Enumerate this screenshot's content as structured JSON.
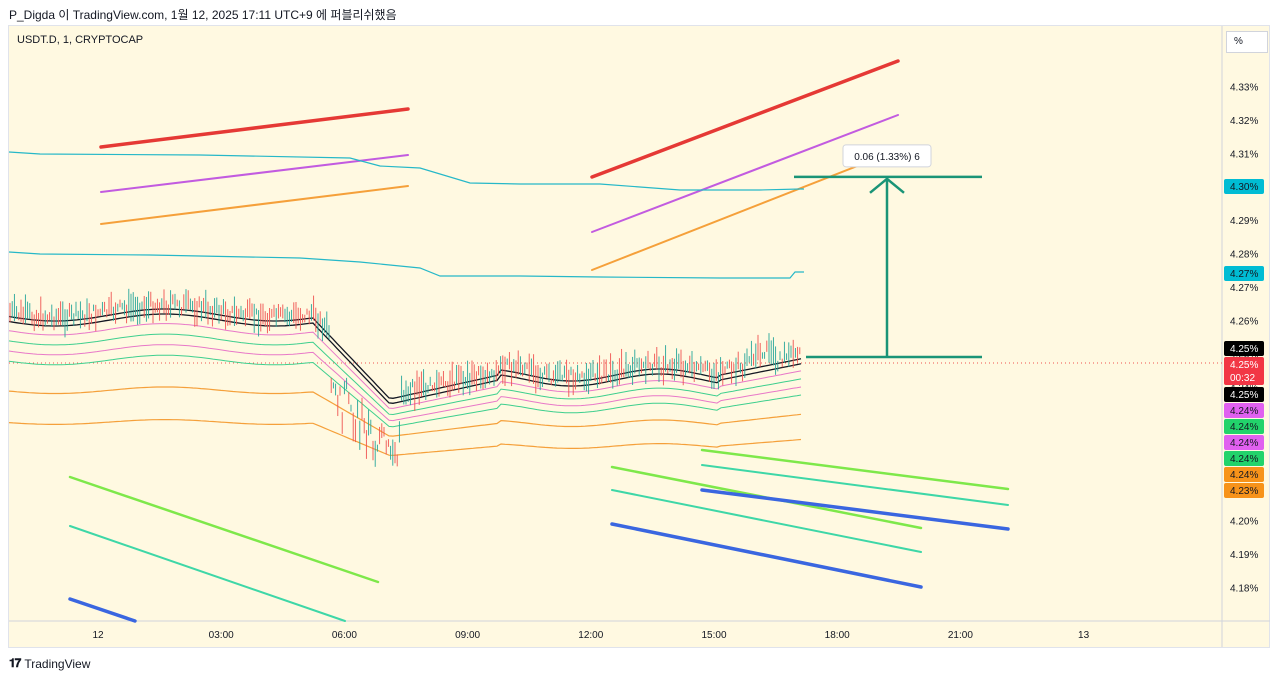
{
  "header": {
    "caption": "P_Digda 이 TradingView.com, 1월 12, 2025 17:11 UTC+9 에 퍼블리쉬했음"
  },
  "chart_header": {
    "symbol": "USDT.D, 1, CRYPTOCAP",
    "unit": "%"
  },
  "footer": {
    "brand": "TradingView",
    "logo": "tradingview-logo-icon"
  },
  "chart_data": {
    "type": "line",
    "xlabel": "",
    "ylabel": "",
    "ylim": [
      4.172,
      4.344
    ],
    "x_ticks": [
      "12",
      "03:00",
      "06:00",
      "09:00",
      "12:00",
      "15:00",
      "18:00",
      "21:00",
      "13"
    ],
    "y_ticks": [
      "4.18%",
      "4.19%",
      "4.20%",
      "4.24%",
      "4.25%",
      "4.26%",
      "4.27%",
      "4.28%",
      "4.29%",
      "4.30%",
      "4.31%",
      "4.32%",
      "4.33%"
    ],
    "price_tags": [
      {
        "label": "4.30%",
        "value": 4.3,
        "bg": "#00bcd4",
        "fg": "#131722"
      },
      {
        "label": "4.27%",
        "value": 4.27,
        "bg": "#00bcd4",
        "fg": "#131722"
      },
      {
        "label": "4.25%",
        "value": 4.253,
        "bg": "#000000",
        "fg": "#ffffff"
      },
      {
        "label": "4.25%",
        "sub": "00:32",
        "value": 4.248,
        "bg": "#f23645",
        "fg": "#ffffff"
      },
      {
        "label": "4.25%",
        "value": 4.244,
        "bg": "#000000",
        "fg": "#ffffff"
      },
      {
        "label": "4.24%",
        "value": 4.239,
        "bg": "#e060f0",
        "fg": "#131722"
      },
      {
        "label": "4.24%",
        "value": 4.235,
        "bg": "#22d36b",
        "fg": "#131722"
      },
      {
        "label": "4.24%",
        "value": 4.23,
        "bg": "#e060f0",
        "fg": "#131722"
      },
      {
        "label": "4.24%",
        "value": 4.226,
        "bg": "#22d36b",
        "fg": "#131722"
      },
      {
        "label": "4.24%",
        "value": 4.222,
        "bg": "#f7931a",
        "fg": "#131722"
      },
      {
        "label": "4.23%",
        "value": 4.217,
        "bg": "#f7931a",
        "fg": "#131722"
      }
    ],
    "measure": {
      "label": "0.06 (1.33%) 6",
      "from": 4.249,
      "to": 4.303
    },
    "colors": {
      "red": "#e53935",
      "purple": "#c25be0",
      "orange": "#f5a03a",
      "green": "#7ee84a",
      "teal": "#3ed7a7",
      "blue": "#3a66e0",
      "cyan": "#26b8c8",
      "measure": "#1a9477",
      "candle_up": "#26a69a",
      "candle_down": "#ef5350"
    }
  }
}
